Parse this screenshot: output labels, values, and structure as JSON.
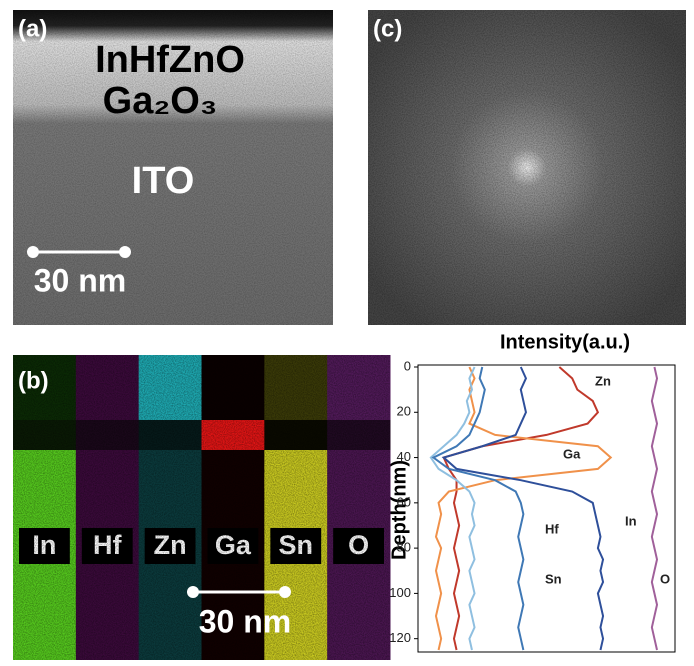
{
  "panel_a": {
    "label": "(a)",
    "layers": [
      "InHfZnO",
      "Ga₂O₃",
      "ITO"
    ],
    "scale_bar": "30 nm"
  },
  "panel_b": {
    "label": "(b)",
    "elements": [
      "In",
      "Hf",
      "Zn",
      "Ga",
      "Sn",
      "O"
    ],
    "scale_bar": "30 nm"
  },
  "panel_c": {
    "label": "(c)"
  },
  "chart_data": {
    "type": "line",
    "xlabel": "Intensity(a.u.)",
    "ylabel": "Depth(nm)",
    "depth": [
      0,
      5,
      10,
      15,
      20,
      25,
      30,
      35,
      40,
      45,
      50,
      55,
      60,
      65,
      70,
      75,
      80,
      85,
      90,
      95,
      100,
      105,
      110,
      115,
      120,
      125
    ],
    "xlim": [
      0,
      100
    ],
    "ylim": [
      0,
      125
    ],
    "y_inverted": true,
    "yticks": [
      0,
      20,
      40,
      60,
      80,
      100,
      120
    ],
    "series": [
      {
        "name": "Zn",
        "color": "#c0392b",
        "values": [
          55,
          60,
          62,
          68,
          70,
          66,
          50,
          25,
          10,
          12,
          15,
          15,
          14,
          15,
          16,
          15,
          14,
          15,
          16,
          15,
          14,
          15,
          16,
          15,
          14,
          15
        ]
      },
      {
        "name": "Ga",
        "color": "#f0914a",
        "values": [
          20,
          22,
          20,
          21,
          22,
          20,
          30,
          70,
          75,
          70,
          30,
          12,
          8,
          9,
          8,
          7,
          9,
          8,
          7,
          8,
          9,
          8,
          7,
          8,
          9,
          8
        ]
      },
      {
        "name": "In",
        "color": "#2e4f9a",
        "values": [
          40,
          42,
          40,
          41,
          42,
          40,
          38,
          25,
          10,
          15,
          40,
          60,
          68,
          69,
          70,
          71,
          70,
          72,
          71,
          72,
          70,
          71,
          72,
          71,
          72,
          71
        ]
      },
      {
        "name": "Hf",
        "color": "#8fbfe0",
        "values": [
          22,
          20,
          21,
          19,
          20,
          18,
          15,
          10,
          5,
          8,
          15,
          20,
          22,
          21,
          22,
          20,
          21,
          22,
          20,
          21,
          22,
          20,
          21,
          22,
          20,
          21
        ]
      },
      {
        "name": "Sn",
        "color": "#3f78b5",
        "values": [
          25,
          24,
          26,
          25,
          24,
          22,
          20,
          15,
          6,
          12,
          30,
          38,
          40,
          41,
          40,
          39,
          40,
          41,
          40,
          39,
          40,
          41,
          40,
          39,
          40,
          41
        ]
      },
      {
        "name": "O",
        "color": "#a0609a",
        "values": [
          92,
          93,
          92,
          91,
          92,
          93,
          92,
          91,
          92,
          93,
          92,
          91,
          92,
          93,
          92,
          91,
          92,
          93,
          92,
          91,
          92,
          93,
          92,
          91,
          92,
          93
        ]
      }
    ]
  }
}
